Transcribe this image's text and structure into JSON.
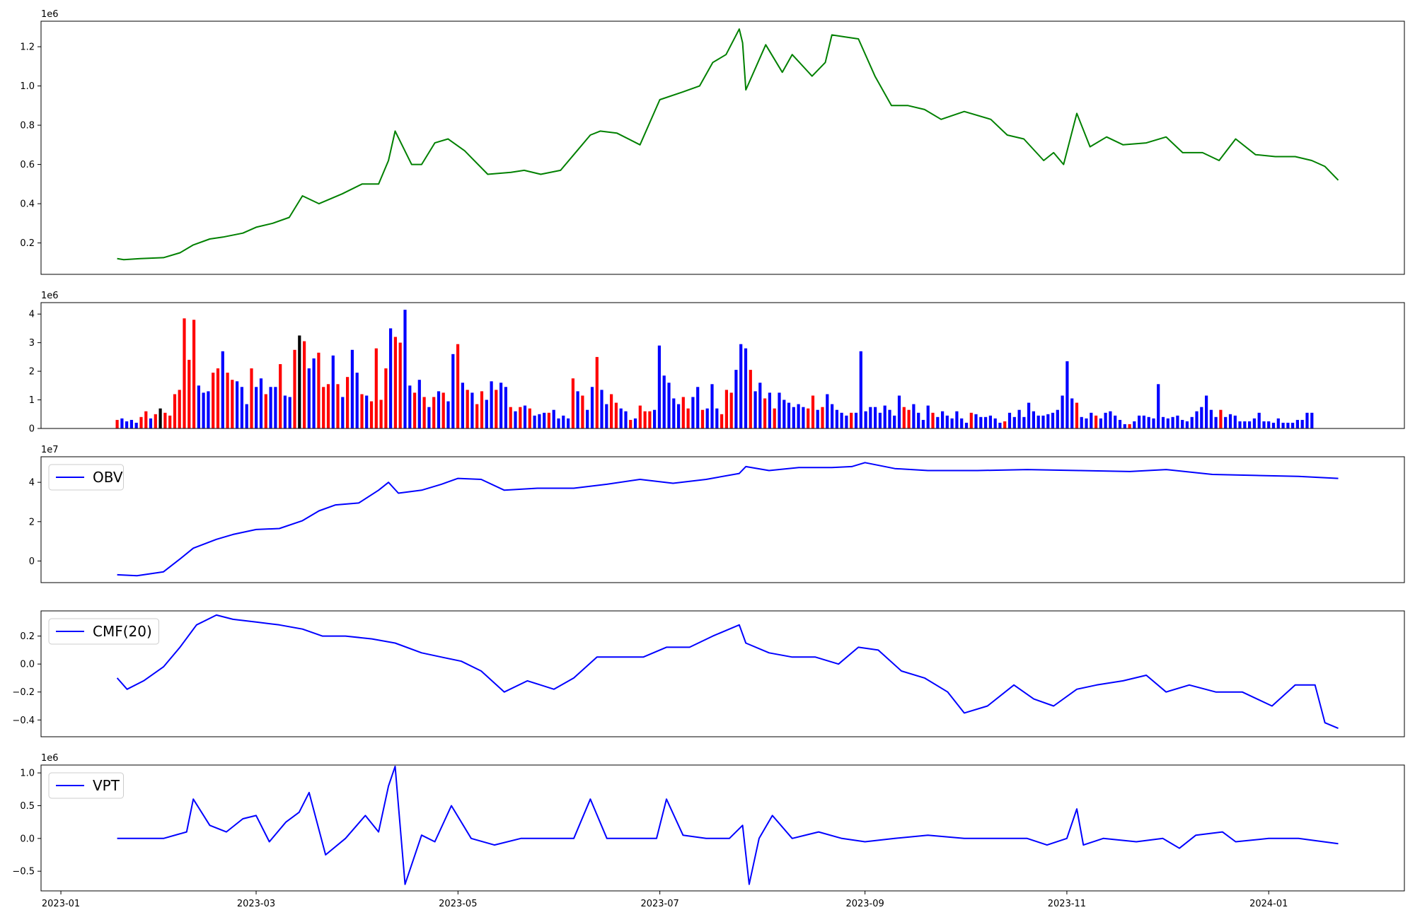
{
  "chart_data": [
    {
      "type": "line",
      "title": "",
      "xlabel": "",
      "ylabel": "",
      "offset_text": "1e6",
      "color": "#008000",
      "ylim": [
        0.04,
        1.33
      ],
      "yticks": [
        0.2,
        0.4,
        0.6,
        0.8,
        1.0,
        1.2
      ],
      "x": [
        "2023-01-18",
        "2023-01-20",
        "2023-01-25",
        "2023-02-01",
        "2023-02-06",
        "2023-02-10",
        "2023-02-15",
        "2023-02-19",
        "2023-02-25",
        "2023-03-01",
        "2023-03-06",
        "2023-03-11",
        "2023-03-15",
        "2023-03-20",
        "2023-03-27",
        "2023-04-02",
        "2023-04-07",
        "2023-04-10",
        "2023-04-12",
        "2023-04-17",
        "2023-04-20",
        "2023-04-24",
        "2023-04-28",
        "2023-05-03",
        "2023-05-10",
        "2023-05-17",
        "2023-05-21",
        "2023-05-26",
        "2023-06-01",
        "2023-06-06",
        "2023-06-10",
        "2023-06-13",
        "2023-06-18",
        "2023-06-25",
        "2023-07-01",
        "2023-07-08",
        "2023-07-13",
        "2023-07-17",
        "2023-07-21",
        "2023-07-25",
        "2023-07-26",
        "2023-07-27",
        "2023-08-02",
        "2023-08-07",
        "2023-08-10",
        "2023-08-16",
        "2023-08-20",
        "2023-08-22",
        "2023-08-26",
        "2023-08-30",
        "2023-09-04",
        "2023-09-09",
        "2023-09-14",
        "2023-09-19",
        "2023-09-24",
        "2023-10-01",
        "2023-10-09",
        "2023-10-14",
        "2023-10-19",
        "2023-10-25",
        "2023-10-28",
        "2023-10-31",
        "2023-11-04",
        "2023-11-08",
        "2023-11-13",
        "2023-11-18",
        "2023-11-25",
        "2023-12-01",
        "2023-12-06",
        "2023-12-12",
        "2023-12-17",
        "2023-12-22",
        "2023-12-28",
        "2024-01-03",
        "2024-01-09",
        "2024-01-14",
        "2024-01-18",
        "2024-01-22"
      ],
      "y": [
        0.12,
        0.115,
        0.12,
        0.125,
        0.15,
        0.19,
        0.22,
        0.23,
        0.25,
        0.28,
        0.3,
        0.33,
        0.44,
        0.4,
        0.45,
        0.5,
        0.5,
        0.62,
        0.77,
        0.6,
        0.6,
        0.71,
        0.73,
        0.67,
        0.55,
        0.56,
        0.57,
        0.55,
        0.57,
        0.67,
        0.75,
        0.77,
        0.76,
        0.7,
        0.93,
        0.97,
        1.0,
        1.12,
        1.16,
        1.29,
        1.22,
        0.98,
        1.21,
        1.07,
        1.16,
        1.05,
        1.12,
        1.26,
        1.25,
        1.24,
        1.05,
        0.9,
        0.9,
        0.88,
        0.83,
        0.87,
        0.83,
        0.75,
        0.73,
        0.62,
        0.66,
        0.6,
        0.86,
        0.69,
        0.74,
        0.7,
        0.71,
        0.74,
        0.66,
        0.66,
        0.62,
        0.73,
        0.65,
        0.64,
        0.64,
        0.62,
        0.59,
        0.52
      ]
    },
    {
      "type": "bar",
      "title": "",
      "xlabel": "",
      "ylabel": "",
      "offset_text": "1e6",
      "ylim": [
        0,
        4.4
      ],
      "yticks": [
        0,
        1,
        2,
        3,
        4
      ],
      "colors": {
        "up": "#ff0000",
        "down": "#0000ff",
        "neutral": "#000000"
      },
      "x_start": "2023-01-18",
      "x_step_days": 1.45,
      "values": [
        0.3,
        0.35,
        0.25,
        0.3,
        0.2,
        0.4,
        0.6,
        0.35,
        0.5,
        0.7,
        0.55,
        0.45,
        1.2,
        1.35,
        3.85,
        2.4,
        3.8,
        1.5,
        1.25,
        1.3,
        1.95,
        2.1,
        2.7,
        1.95,
        1.7,
        1.65,
        1.45,
        0.85,
        2.1,
        1.45,
        1.75,
        1.2,
        1.45,
        1.45,
        2.25,
        1.15,
        1.1,
        2.75,
        3.25,
        3.05,
        2.1,
        2.45,
        2.65,
        1.45,
        1.55,
        2.55,
        1.55,
        1.1,
        1.8,
        2.75,
        1.95,
        1.2,
        1.15,
        0.95,
        2.8,
        1.0,
        2.1,
        3.5,
        3.2,
        3.0,
        4.15,
        1.5,
        1.25,
        1.7,
        1.1,
        0.75,
        1.1,
        1.3,
        1.25,
        0.95,
        2.6,
        2.95,
        1.6,
        1.35,
        1.25,
        0.85,
        1.3,
        1.0,
        1.65,
        1.35,
        1.6,
        1.45,
        0.75,
        0.6,
        0.75,
        0.8,
        0.7,
        0.45,
        0.5,
        0.55,
        0.55,
        0.65,
        0.35,
        0.45,
        0.35,
        1.75,
        1.3,
        1.15,
        0.65,
        1.45,
        2.5,
        1.35,
        0.85,
        1.2,
        0.9,
        0.7,
        0.6,
        0.3,
        0.35,
        0.8,
        0.6,
        0.6,
        0.65,
        2.9,
        1.85,
        1.6,
        1.05,
        0.85,
        1.1,
        0.7,
        1.1,
        1.45,
        0.65,
        0.7,
        1.55,
        0.7,
        0.5,
        1.35,
        1.25,
        2.05,
        2.95,
        2.8,
        2.05,
        1.3,
        1.6,
        1.05,
        1.25,
        0.7,
        1.25,
        1.0,
        0.9,
        0.75,
        0.85,
        0.75,
        0.7,
        1.15,
        0.65,
        0.75,
        1.2,
        0.85,
        0.65,
        0.55,
        0.45,
        0.55,
        0.55,
        2.7,
        0.6,
        0.75,
        0.75,
        0.55,
        0.8,
        0.65,
        0.45,
        1.15,
        0.75,
        0.65,
        0.85,
        0.55,
        0.3,
        0.8,
        0.55,
        0.4,
        0.6,
        0.45,
        0.35,
        0.6,
        0.35,
        0.2,
        0.55,
        0.5,
        0.4,
        0.4,
        0.45,
        0.35,
        0.2,
        0.25,
        0.55,
        0.4,
        0.65,
        0.4,
        0.9,
        0.6,
        0.45,
        0.45,
        0.5,
        0.55,
        0.65,
        1.15,
        2.35,
        1.05,
        0.9,
        0.4,
        0.35,
        0.55,
        0.45,
        0.35,
        0.55,
        0.6,
        0.45,
        0.3,
        0.15,
        0.15,
        0.25,
        0.45,
        0.45,
        0.4,
        0.35,
        1.55,
        0.4,
        0.35,
        0.4,
        0.45,
        0.3,
        0.25,
        0.4,
        0.6,
        0.75,
        1.15,
        0.65,
        0.4,
        0.65,
        0.4,
        0.5,
        0.45,
        0.25,
        0.25,
        0.25,
        0.35,
        0.55,
        0.25,
        0.25,
        0.2,
        0.35,
        0.2,
        0.2,
        0.2,
        0.3,
        0.3,
        0.55,
        0.55
      ],
      "directions": "rbbbbrrbrkrrrrrrrbbbrrbrrbbbrbbrbbrbbrkrbbrrrbrbrbbrbrrrrbrrbbrbrbrbrbbrbrbrrbbrbbrbrbrbbbrbbbbrbrbbrbbrrbbrbrrrbbbbbbrrbbrbbbrrrbbbrbbrbrbbbbbbrrbrbbbbbrbbbbbbbbbbrrbbbbrbbbbbbbrbbbbbbrbbbbbbbbbbbbbbrbbbrbbbbbbrbbbbbbbbbbbbbbbbbbrbbbbbbbb"
    },
    {
      "type": "line",
      "title": "",
      "xlabel": "",
      "ylabel": "",
      "offset_text": "1e7",
      "legend": "OBV",
      "legend_position": "upper-left",
      "color": "#0000ff",
      "ylim": [
        -1.1,
        5.3
      ],
      "yticks": [
        0,
        2,
        4
      ],
      "x": [
        "2023-01-18",
        "2023-01-24",
        "2023-02-01",
        "2023-02-06",
        "2023-02-10",
        "2023-02-17",
        "2023-02-22",
        "2023-03-01",
        "2023-03-08",
        "2023-03-15",
        "2023-03-20",
        "2023-03-25",
        "2023-04-01",
        "2023-04-07",
        "2023-04-10",
        "2023-04-13",
        "2023-04-20",
        "2023-04-26",
        "2023-05-01",
        "2023-05-08",
        "2023-05-15",
        "2023-05-25",
        "2023-06-05",
        "2023-06-15",
        "2023-06-25",
        "2023-07-05",
        "2023-07-15",
        "2023-07-25",
        "2023-07-27",
        "2023-08-03",
        "2023-08-12",
        "2023-08-22",
        "2023-08-28",
        "2023-09-01",
        "2023-09-10",
        "2023-09-20",
        "2023-10-05",
        "2023-10-20",
        "2023-11-05",
        "2023-11-20",
        "2023-12-01",
        "2023-12-15",
        "2023-12-28",
        "2024-01-10",
        "2024-01-22"
      ],
      "y": [
        -0.7,
        -0.75,
        -0.55,
        0.1,
        0.65,
        1.1,
        1.35,
        1.6,
        1.65,
        2.05,
        2.55,
        2.85,
        2.95,
        3.6,
        4.0,
        3.45,
        3.6,
        3.9,
        4.2,
        4.15,
        3.6,
        3.7,
        3.7,
        3.9,
        4.15,
        3.95,
        4.15,
        4.45,
        4.8,
        4.6,
        4.75,
        4.75,
        4.8,
        5.0,
        4.7,
        4.6,
        4.6,
        4.65,
        4.6,
        4.55,
        4.65,
        4.4,
        4.35,
        4.3,
        4.2
      ]
    },
    {
      "type": "line",
      "title": "",
      "xlabel": "",
      "ylabel": "",
      "legend": "CMF(20)",
      "legend_position": "upper-left",
      "color": "#0000ff",
      "ylim": [
        -0.52,
        0.38
      ],
      "yticks": [
        -0.4,
        -0.2,
        0.0,
        0.2
      ],
      "x": [
        "2023-01-18",
        "2023-01-21",
        "2023-01-26",
        "2023-02-01",
        "2023-02-06",
        "2023-02-11",
        "2023-02-17",
        "2023-02-22",
        "2023-03-01",
        "2023-03-08",
        "2023-03-15",
        "2023-03-21",
        "2023-03-28",
        "2023-04-05",
        "2023-04-12",
        "2023-04-20",
        "2023-04-26",
        "2023-05-02",
        "2023-05-08",
        "2023-05-15",
        "2023-05-22",
        "2023-05-30",
        "2023-06-05",
        "2023-06-12",
        "2023-06-19",
        "2023-06-26",
        "2023-07-03",
        "2023-07-10",
        "2023-07-17",
        "2023-07-25",
        "2023-07-27",
        "2023-08-03",
        "2023-08-10",
        "2023-08-17",
        "2023-08-24",
        "2023-08-30",
        "2023-09-05",
        "2023-09-12",
        "2023-09-19",
        "2023-09-26",
        "2023-10-01",
        "2023-10-08",
        "2023-10-16",
        "2023-10-22",
        "2023-10-28",
        "2023-11-04",
        "2023-11-10",
        "2023-11-18",
        "2023-11-25",
        "2023-12-01",
        "2023-12-08",
        "2023-12-16",
        "2023-12-24",
        "2024-01-02",
        "2024-01-09",
        "2024-01-15",
        "2024-01-18",
        "2024-01-22"
      ],
      "y": [
        -0.1,
        -0.18,
        -0.12,
        -0.02,
        0.12,
        0.28,
        0.35,
        0.32,
        0.3,
        0.28,
        0.25,
        0.2,
        0.2,
        0.18,
        0.15,
        0.08,
        0.05,
        0.02,
        -0.05,
        -0.2,
        -0.12,
        -0.18,
        -0.1,
        0.05,
        0.05,
        0.05,
        0.12,
        0.12,
        0.2,
        0.28,
        0.15,
        0.08,
        0.05,
        0.05,
        0.0,
        0.12,
        0.1,
        -0.05,
        -0.1,
        -0.2,
        -0.35,
        -0.3,
        -0.15,
        -0.25,
        -0.3,
        -0.18,
        -0.15,
        -0.12,
        -0.08,
        -0.2,
        -0.15,
        -0.2,
        -0.2,
        -0.3,
        -0.15,
        -0.15,
        -0.42,
        -0.46
      ]
    },
    {
      "type": "line",
      "title": "",
      "xlabel": "",
      "ylabel": "",
      "offset_text": "1e6",
      "legend": "VPT",
      "legend_position": "upper-left",
      "color": "#0000ff",
      "ylim": [
        -0.8,
        1.12
      ],
      "yticks": [
        -0.5,
        0.0,
        0.5,
        1.0
      ],
      "x": [
        "2023-01-18",
        "2023-01-25",
        "2023-02-01",
        "2023-02-08",
        "2023-02-10",
        "2023-02-15",
        "2023-02-20",
        "2023-02-25",
        "2023-03-01",
        "2023-03-05",
        "2023-03-10",
        "2023-03-14",
        "2023-03-17",
        "2023-03-22",
        "2023-03-28",
        "2023-04-03",
        "2023-04-07",
        "2023-04-10",
        "2023-04-12",
        "2023-04-15",
        "2023-04-20",
        "2023-04-24",
        "2023-04-29",
        "2023-05-05",
        "2023-05-12",
        "2023-05-20",
        "2023-05-28",
        "2023-06-05",
        "2023-06-10",
        "2023-06-15",
        "2023-06-22",
        "2023-06-30",
        "2023-07-03",
        "2023-07-08",
        "2023-07-15",
        "2023-07-22",
        "2023-07-26",
        "2023-07-28",
        "2023-07-31",
        "2023-08-04",
        "2023-08-10",
        "2023-08-18",
        "2023-08-25",
        "2023-09-01",
        "2023-09-10",
        "2023-09-20",
        "2023-10-01",
        "2023-10-10",
        "2023-10-20",
        "2023-10-26",
        "2023-11-01",
        "2023-11-04",
        "2023-11-06",
        "2023-11-12",
        "2023-11-22",
        "2023-11-30",
        "2023-12-05",
        "2023-12-10",
        "2023-12-18",
        "2023-12-22",
        "2024-01-01",
        "2024-01-10",
        "2024-01-22"
      ],
      "y": [
        0.0,
        0.0,
        0.0,
        0.1,
        0.6,
        0.2,
        0.1,
        0.3,
        0.35,
        -0.05,
        0.25,
        0.4,
        0.7,
        -0.25,
        0.0,
        0.35,
        0.1,
        0.8,
        1.1,
        -0.7,
        0.05,
        -0.05,
        0.5,
        0.0,
        -0.1,
        0.0,
        0.0,
        0.0,
        0.6,
        0.0,
        0.0,
        0.0,
        0.6,
        0.05,
        0.0,
        0.0,
        0.2,
        -0.7,
        0.0,
        0.35,
        0.0,
        0.1,
        0.0,
        -0.05,
        0.0,
        0.05,
        0.0,
        0.0,
        0.0,
        -0.1,
        0.0,
        0.45,
        -0.1,
        0.0,
        -0.05,
        0.0,
        -0.15,
        0.05,
        0.1,
        -0.05,
        0.0,
        0.0,
        -0.08
      ]
    }
  ],
  "x_axis": {
    "start": "2022-12-26",
    "end": "2024-02-11",
    "ticks": [
      "2023-01",
      "2023-03",
      "2023-05",
      "2023-07",
      "2023-09",
      "2023-11",
      "2024-01"
    ]
  }
}
